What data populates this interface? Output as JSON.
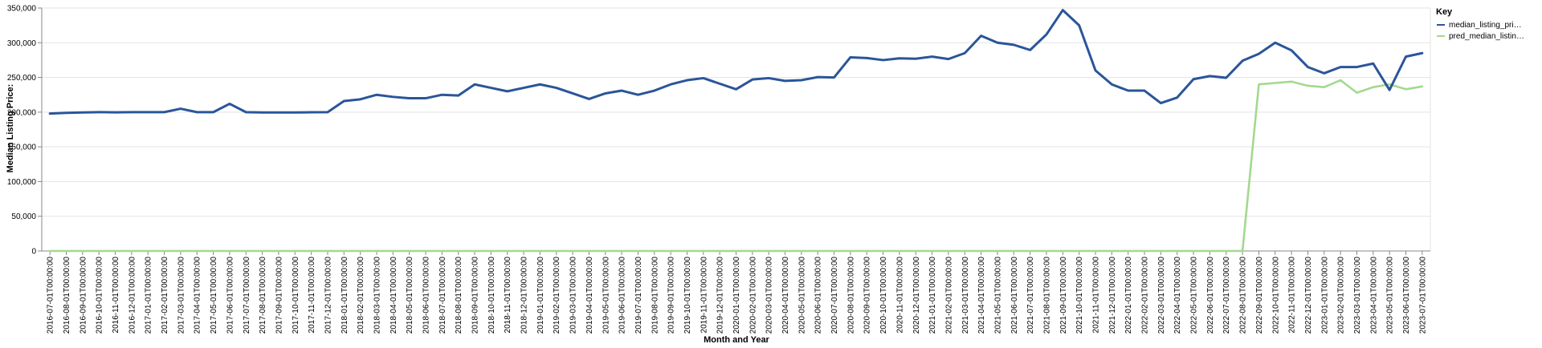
{
  "chart_data": {
    "type": "line",
    "xlabel": "Month and Year",
    "ylabel": "Median Listing Price:",
    "ylim": [
      0,
      350000
    ],
    "yticks": [
      "0",
      "50,000",
      "100,000",
      "150,000",
      "200,000",
      "250,000",
      "300,000",
      "350,000"
    ],
    "grid": true,
    "legend_placement": "right",
    "legend_title": "Key",
    "x": [
      "2016-07-01T00:00:00",
      "2016-08-01T00:00:00",
      "2016-09-01T00:00:00",
      "2016-10-01T00:00:00",
      "2016-11-01T00:00:00",
      "2016-12-01T00:00:00",
      "2017-01-01T00:00:00",
      "2017-02-01T00:00:00",
      "2017-03-01T00:00:00",
      "2017-04-01T00:00:00",
      "2017-05-01T00:00:00",
      "2017-06-01T00:00:00",
      "2017-07-01T00:00:00",
      "2017-08-01T00:00:00",
      "2017-09-01T00:00:00",
      "2017-10-01T00:00:00",
      "2017-11-01T00:00:00",
      "2017-12-01T00:00:00",
      "2018-01-01T00:00:00",
      "2018-02-01T00:00:00",
      "2018-03-01T00:00:00",
      "2018-04-01T00:00:00",
      "2018-05-01T00:00:00",
      "2018-06-01T00:00:00",
      "2018-07-01T00:00:00",
      "2018-08-01T00:00:00",
      "2018-09-01T00:00:00",
      "2018-10-01T00:00:00",
      "2018-11-01T00:00:00",
      "2018-12-01T00:00:00",
      "2019-01-01T00:00:00",
      "2019-02-01T00:00:00",
      "2019-03-01T00:00:00",
      "2019-04-01T00:00:00",
      "2019-05-01T00:00:00",
      "2019-06-01T00:00:00",
      "2019-07-01T00:00:00",
      "2019-08-01T00:00:00",
      "2019-09-01T00:00:00",
      "2019-10-01T00:00:00",
      "2019-11-01T00:00:00",
      "2019-12-01T00:00:00",
      "2020-01-01T00:00:00",
      "2020-02-01T00:00:00",
      "2020-03-01T00:00:00",
      "2020-04-01T00:00:00",
      "2020-05-01T00:00:00",
      "2020-06-01T00:00:00",
      "2020-07-01T00:00:00",
      "2020-08-01T00:00:00",
      "2020-09-01T00:00:00",
      "2020-10-01T00:00:00",
      "2020-11-01T00:00:00",
      "2020-12-01T00:00:00",
      "2021-01-01T00:00:00",
      "2021-02-01T00:00:00",
      "2021-03-01T00:00:00",
      "2021-04-01T00:00:00",
      "2021-05-01T00:00:00",
      "2021-06-01T00:00:00",
      "2021-07-01T00:00:00",
      "2021-08-01T00:00:00",
      "2021-09-01T00:00:00",
      "2021-10-01T00:00:00",
      "2021-11-01T00:00:00",
      "2021-12-01T00:00:00",
      "2022-01-01T00:00:00",
      "2022-02-01T00:00:00",
      "2022-03-01T00:00:00",
      "2022-04-01T00:00:00",
      "2022-05-01T00:00:00",
      "2022-06-01T00:00:00",
      "2022-07-01T00:00:00",
      "2022-08-01T00:00:00",
      "2022-09-01T00:00:00",
      "2022-10-01T00:00:00",
      "2022-11-01T00:00:00",
      "2022-12-01T00:00:00",
      "2023-01-01T00:00:00",
      "2023-02-01T00:00:00",
      "2023-03-01T00:00:00",
      "2023-04-01T00:00:00",
      "2023-05-01T00:00:00",
      "2023-06-01T00:00:00",
      "2023-07-01T00:00:00"
    ],
    "series": [
      {
        "name": "median_listing_pri…",
        "color": "#2a5599",
        "values": [
          198000,
          199000,
          199500,
          200000,
          199700,
          200000,
          200000,
          200000,
          205000,
          200000,
          200000,
          212000,
          200000,
          199500,
          199500,
          199500,
          199800,
          200000,
          216000,
          218500,
          225000,
          222000,
          220000,
          220000,
          225000,
          224000,
          240000,
          235000,
          230000,
          235000,
          240000,
          235000,
          227000,
          219000,
          227000,
          231000,
          225000,
          231000,
          240000,
          246000,
          249000,
          241000,
          233000,
          247000,
          249000,
          245000,
          246000,
          250500,
          250000,
          279000,
          278000,
          275000,
          277500,
          277000,
          280000,
          276500,
          285000,
          310000,
          300000,
          297000,
          289500,
          312000,
          347000,
          325000,
          260000,
          240000,
          231000,
          231000,
          213000,
          221000,
          247500,
          252000,
          249500,
          274000,
          284000,
          300000,
          289000,
          265000,
          256000,
          265000,
          265000,
          270000,
          232000,
          280000,
          285000
        ]
      },
      {
        "name": "pred_median_listin…",
        "color": "#a3d98e",
        "values": [
          0,
          0,
          0,
          0,
          0,
          0,
          0,
          0,
          0,
          0,
          0,
          0,
          0,
          0,
          0,
          0,
          0,
          0,
          0,
          0,
          0,
          0,
          0,
          0,
          0,
          0,
          0,
          0,
          0,
          0,
          0,
          0,
          0,
          0,
          0,
          0,
          0,
          0,
          0,
          0,
          0,
          0,
          0,
          0,
          0,
          0,
          0,
          0,
          0,
          0,
          0,
          0,
          0,
          0,
          0,
          0,
          0,
          0,
          0,
          0,
          0,
          0,
          0,
          0,
          0,
          0,
          0,
          0,
          0,
          0,
          0,
          0,
          0,
          0,
          240000,
          242000,
          244000,
          238000,
          236000,
          246000,
          228000,
          236000,
          240000,
          233000,
          237000
        ]
      }
    ]
  }
}
